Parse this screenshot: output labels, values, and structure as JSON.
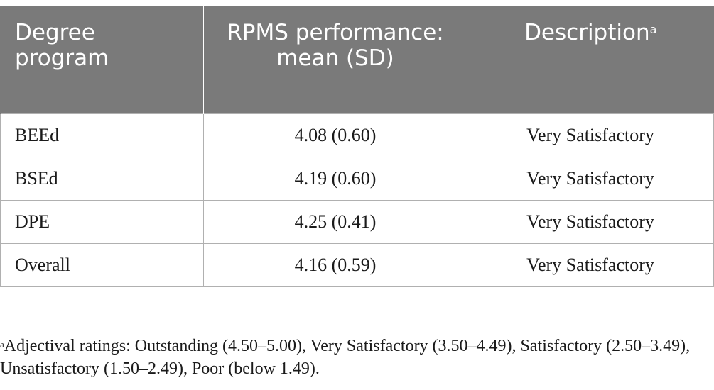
{
  "table": {
    "headers": [
      {
        "text": "Degree program",
        "sup": ""
      },
      {
        "text": "RPMS performance: mean (SD)",
        "sup": ""
      },
      {
        "text": "Description",
        "sup": "a"
      }
    ],
    "rows": [
      {
        "program": "BEEd",
        "mean_sd": "4.08 (0.60)",
        "description": "Very Satisfactory"
      },
      {
        "program": "BSEd",
        "mean_sd": "4.19 (0.60)",
        "description": "Very Satisfactory"
      },
      {
        "program": "DPE",
        "mean_sd": "4.25 (0.41)",
        "description": "Very Satisfactory"
      },
      {
        "program": "Overall",
        "mean_sd": "4.16 (0.59)",
        "description": "Very Satisfactory"
      }
    ]
  },
  "footnote": {
    "marker": "a",
    "text": "Adjectival ratings: Outstanding (4.50–5.00), Very Satisfactory (3.50–4.49), Satisfactory (2.50–3.49), Unsatisfactory (1.50–2.49), Poor (below 1.49)."
  }
}
